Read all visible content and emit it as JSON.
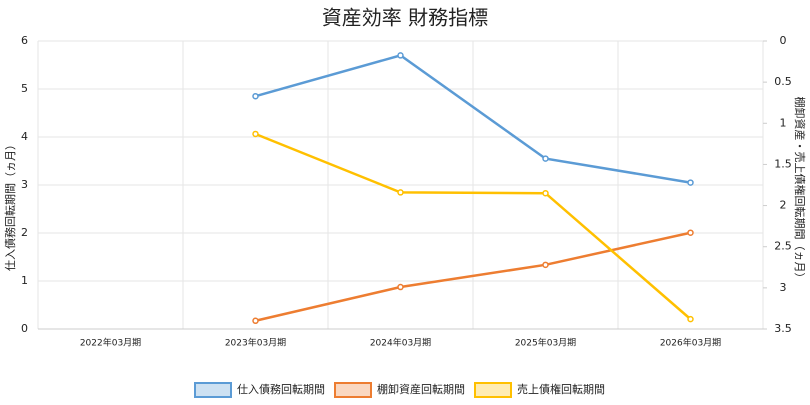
{
  "chart_data": {
    "type": "line",
    "title": "資産効率 財務指標",
    "categories": [
      "2022年03月期",
      "2023年03月期",
      "2024年03月期",
      "2025年03月期",
      "2026年03月期"
    ],
    "y_label": "仕入債務回転期間（ヵ月）",
    "y2_label": "棚卸資産・売上債権回転期間（ヵ月）",
    "ylim": [
      0,
      6
    ],
    "yticks": [
      0,
      1,
      2,
      3,
      4,
      5,
      6
    ],
    "y2lim": [
      0,
      3.5
    ],
    "y2ticks": [
      0,
      0.5,
      1,
      1.5,
      2,
      2.5,
      3,
      3.5
    ],
    "y2_reversed": true,
    "grid": true,
    "legend": "bottom",
    "series": [
      {
        "name": "仕入債務回転期間",
        "color": "#5b9bd5",
        "values": [
          null,
          4.85,
          5.7,
          3.55,
          3.05
        ]
      },
      {
        "name": "棚卸資産回転期間",
        "color": "#ed7d31",
        "axis": "y2",
        "values": [
          null,
          3.4,
          2.99,
          2.72,
          2.33
        ]
      },
      {
        "name": "売上債権回転期間",
        "color": "#ffc000",
        "axis": "y2",
        "values": [
          null,
          1.13,
          1.84,
          1.85,
          3.38
        ]
      }
    ]
  }
}
